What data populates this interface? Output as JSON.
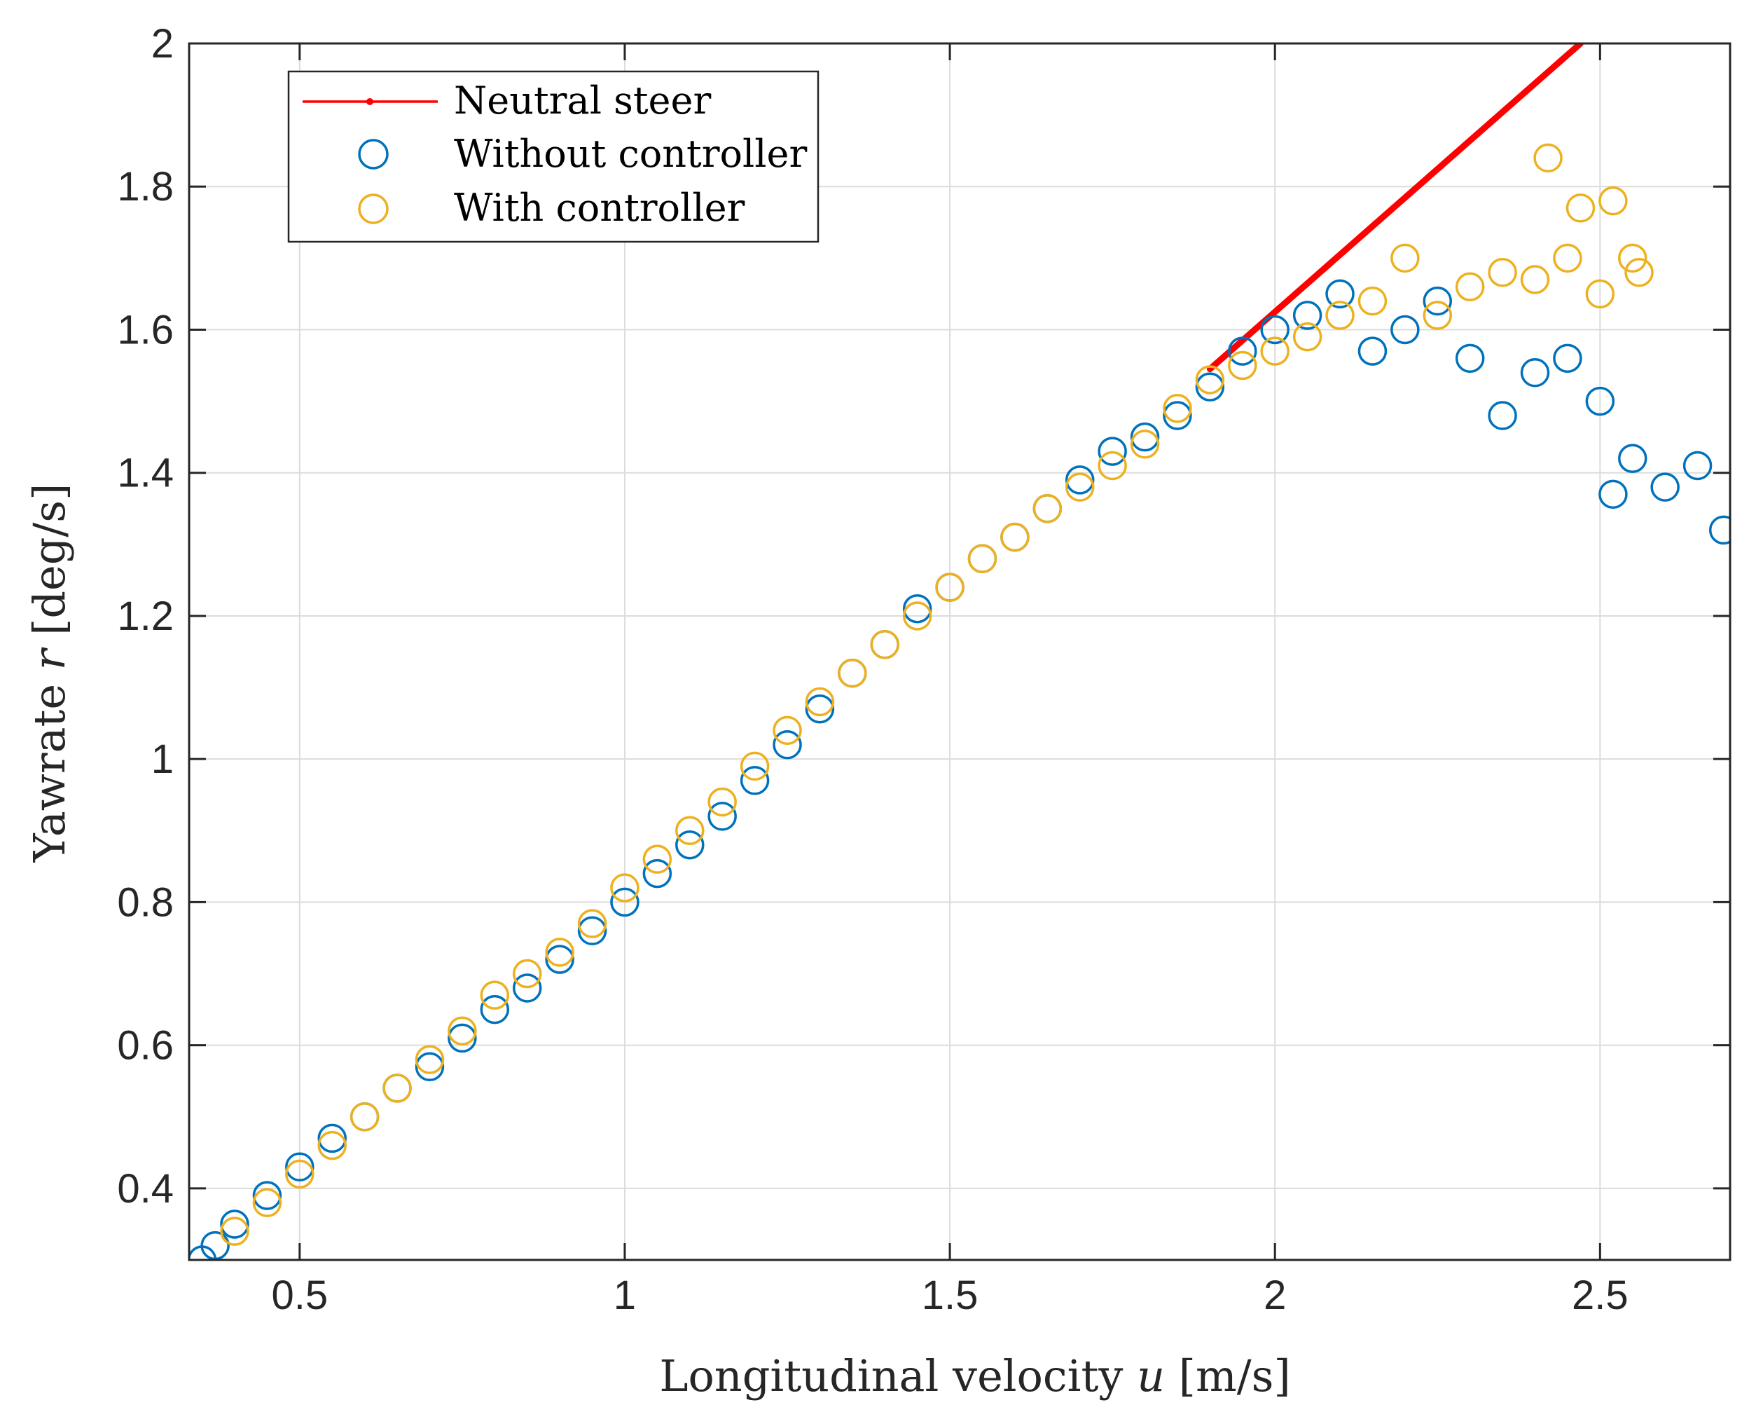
{
  "chart_data": {
    "type": "scatter",
    "title": "",
    "xlabel": "Longitudinal velocity u [m/s]",
    "xlabel_parts": {
      "prefix": "Longitudinal velocity ",
      "var": "u",
      "suffix": " [m/s]"
    },
    "ylabel": "Yawrate r [deg/s]",
    "ylabel_parts": {
      "prefix": "Yawrate ",
      "var": "r",
      "suffix": " [deg/s]"
    },
    "xlim": [
      0.33,
      2.7
    ],
    "ylim": [
      0.3,
      2.0
    ],
    "xticks": [
      0.5,
      1,
      1.5,
      2,
      2.5
    ],
    "xtick_labels": [
      "0.5",
      "1",
      "1.5",
      "2",
      "2.5"
    ],
    "yticks": [
      0.4,
      0.6,
      0.8,
      1.0,
      1.2,
      1.4,
      1.6,
      1.8,
      2.0
    ],
    "ytick_labels": [
      "0.4",
      "0.6",
      "0.8",
      "1",
      "1.2",
      "1.4",
      "1.6",
      "1.8",
      "2"
    ],
    "grid": true,
    "legend_position": "top-left",
    "series": [
      {
        "name": "Neutral steer",
        "style": "line",
        "color": "#ff0000",
        "x": [
          1.9,
          2.47
        ],
        "y": [
          1.545,
          2.0
        ]
      },
      {
        "name": "Without controller",
        "style": "circle",
        "color": "#0072bd",
        "x": [
          0.35,
          0.37,
          0.4,
          0.45,
          0.5,
          0.55,
          0.6,
          0.65,
          0.7,
          0.75,
          0.8,
          0.85,
          0.9,
          0.95,
          1.0,
          1.05,
          1.1,
          1.15,
          1.2,
          1.25,
          1.3,
          1.35,
          1.4,
          1.45,
          1.5,
          1.55,
          1.6,
          1.65,
          1.7,
          1.75,
          1.8,
          1.85,
          1.9,
          1.95,
          2.0,
          2.05,
          2.1,
          2.15,
          2.2,
          2.25,
          2.3,
          2.35,
          2.4,
          2.45,
          2.5,
          2.52,
          2.55,
          2.6,
          2.65,
          2.69
        ],
        "y": [
          0.3,
          0.32,
          0.35,
          0.39,
          0.43,
          0.47,
          0.5,
          0.54,
          0.57,
          0.61,
          0.65,
          0.68,
          0.72,
          0.76,
          0.8,
          0.84,
          0.88,
          0.92,
          0.97,
          1.02,
          1.07,
          1.12,
          1.16,
          1.21,
          1.24,
          1.28,
          1.31,
          1.35,
          1.39,
          1.43,
          1.45,
          1.48,
          1.52,
          1.57,
          1.6,
          1.62,
          1.65,
          1.57,
          1.6,
          1.64,
          1.56,
          1.48,
          1.54,
          1.56,
          1.5,
          1.37,
          1.42,
          1.38,
          1.41,
          1.32
        ]
      },
      {
        "name": "With controller",
        "style": "circle",
        "color": "#edb120",
        "x": [
          0.4,
          0.45,
          0.5,
          0.55,
          0.6,
          0.65,
          0.7,
          0.75,
          0.8,
          0.85,
          0.9,
          0.95,
          1.0,
          1.05,
          1.1,
          1.15,
          1.2,
          1.25,
          1.3,
          1.35,
          1.4,
          1.45,
          1.5,
          1.55,
          1.6,
          1.65,
          1.7,
          1.75,
          1.8,
          1.85,
          1.9,
          1.95,
          2.0,
          2.05,
          2.1,
          2.15,
          2.2,
          2.25,
          2.3,
          2.35,
          2.4,
          2.42,
          2.45,
          2.47,
          2.5,
          2.52,
          2.55,
          2.56
        ],
        "y": [
          0.34,
          0.38,
          0.42,
          0.46,
          0.5,
          0.54,
          0.58,
          0.62,
          0.67,
          0.7,
          0.73,
          0.77,
          0.82,
          0.86,
          0.9,
          0.94,
          0.99,
          1.04,
          1.08,
          1.12,
          1.16,
          1.2,
          1.24,
          1.28,
          1.31,
          1.35,
          1.38,
          1.41,
          1.44,
          1.49,
          1.53,
          1.55,
          1.57,
          1.59,
          1.62,
          1.64,
          1.7,
          1.62,
          1.66,
          1.68,
          1.67,
          1.84,
          1.7,
          1.77,
          1.65,
          1.78,
          1.7,
          1.68
        ]
      }
    ]
  }
}
